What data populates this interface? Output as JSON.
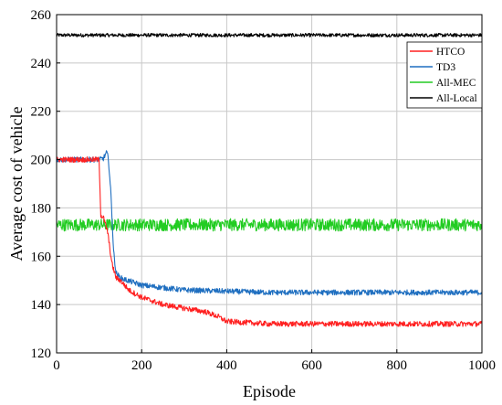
{
  "chart_data": {
    "type": "line",
    "title": "",
    "xlabel": "Episode",
    "ylabel": "Average cost of vehicle",
    "xlim": [
      0,
      1000
    ],
    "ylim": [
      120,
      260
    ],
    "xticks": [
      0,
      200,
      400,
      600,
      800,
      1000
    ],
    "yticks": [
      120,
      140,
      160,
      180,
      200,
      220,
      240,
      260
    ],
    "grid": true,
    "legend_position": "top-right",
    "series": [
      {
        "name": "HTCO",
        "color": "#ff2020",
        "noise": 0.7,
        "x": [
          0,
          99,
          100,
          104,
          110,
          120,
          130,
          140,
          150,
          170,
          200,
          250,
          300,
          350,
          380,
          400,
          450,
          500,
          600,
          700,
          800,
          900,
          1000
        ],
        "y": [
          200,
          200,
          199.5,
          177,
          176,
          170,
          157,
          151,
          150,
          146,
          143,
          140,
          138.5,
          137,
          135,
          133,
          132.5,
          132,
          132,
          132,
          132,
          132,
          132
        ]
      },
      {
        "name": "TD3",
        "color": "#1f6fc0",
        "noise": 0.7,
        "x": [
          0,
          100,
          110,
          118,
          122,
          128,
          134,
          140,
          150,
          200,
          250,
          300,
          400,
          500,
          600,
          700,
          800,
          900,
          1000
        ],
        "y": [
          200,
          200,
          200.5,
          203,
          200,
          185,
          162,
          153,
          151,
          148,
          147,
          146,
          145.5,
          145,
          145,
          145,
          145,
          145,
          145
        ]
      },
      {
        "name": "All-MEC",
        "color": "#22cc22",
        "noise": 1.6,
        "x": [
          0,
          1000
        ],
        "y": [
          173,
          173
        ]
      },
      {
        "name": "All-Local",
        "color": "#000000",
        "noise": 0.45,
        "x": [
          0,
          1000
        ],
        "y": [
          251.5,
          251.5
        ]
      }
    ]
  }
}
